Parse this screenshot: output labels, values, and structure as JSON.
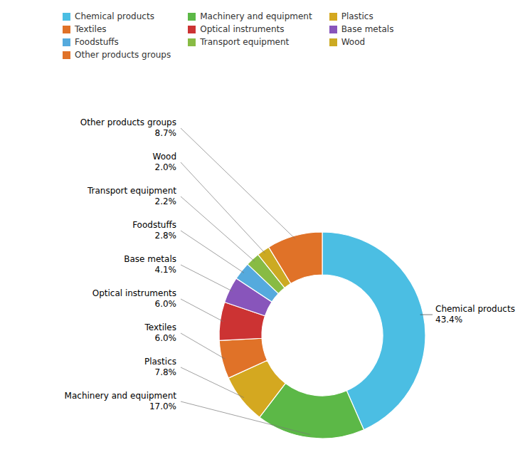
{
  "chart_data": {
    "type": "pie",
    "categories": [
      "Chemical products",
      "Machinery and equipment",
      "Plastics",
      "Textiles",
      "Optical instruments",
      "Base metals",
      "Foodstuffs",
      "Transport equipment",
      "Wood",
      "Other products groups"
    ],
    "values": [
      43.4,
      17.0,
      7.8,
      6.0,
      6.0,
      4.1,
      2.8,
      2.2,
      2.0,
      8.7
    ],
    "value_labels": [
      "43.4%",
      "17.0%",
      "7.8%",
      "6.0%",
      "6.0%",
      "4.1%",
      "2.8%",
      "2.2%",
      "2.0%",
      "8.7%"
    ],
    "colors": [
      "#4BBEE3",
      "#5CB847",
      "#D4A820",
      "#E07228",
      "#CC3333",
      "#8855BB",
      "#55AADD",
      "#88BB44",
      "#CCAA22",
      "#E07228"
    ],
    "data_labels": true,
    "legend": "top"
  }
}
